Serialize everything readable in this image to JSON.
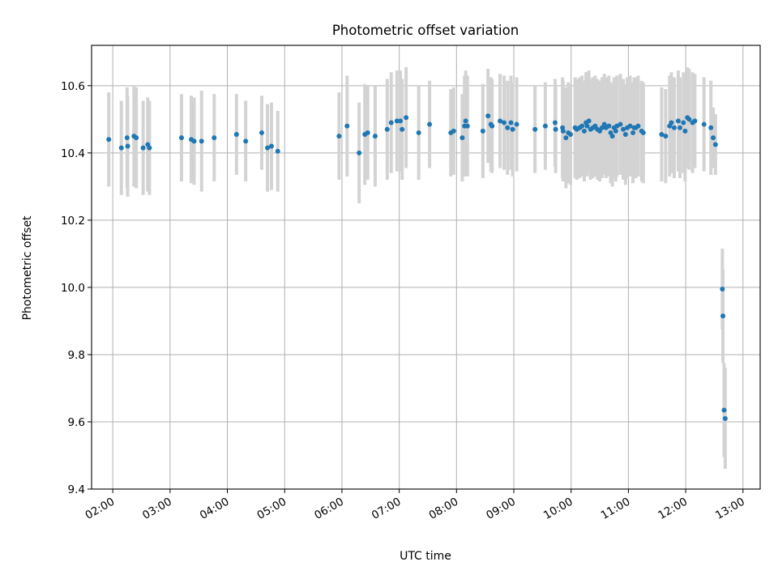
{
  "chart_data": {
    "type": "scatter",
    "title": "Photometric offset variation",
    "xlabel": "UTC time",
    "ylabel": "Photometric offset",
    "x_unit": "hours UTC",
    "xlim": [
      1.63,
      13.3
    ],
    "ylim": [
      9.4,
      10.72
    ],
    "grid": true,
    "x_tick_values": [
      2,
      3,
      4,
      5,
      6,
      7,
      8,
      9,
      10,
      11,
      12,
      13
    ],
    "x_tick_labels": [
      "02:00",
      "03:00",
      "04:00",
      "05:00",
      "06:00",
      "07:00",
      "08:00",
      "09:00",
      "10:00",
      "11:00",
      "12:00",
      "13:00"
    ],
    "y_tick_values": [
      9.4,
      9.6,
      9.8,
      10.0,
      10.2,
      10.4,
      10.6
    ],
    "y_tick_labels": [
      "9.4",
      "9.6",
      "9.8",
      "10.0",
      "10.2",
      "10.4",
      "10.6"
    ],
    "colors": {
      "marker": "#1f77b4",
      "errorbar": "#d3d3d3",
      "grid": "#b0b0b0"
    },
    "series": [
      {
        "x": [
          1.93,
          2.15,
          2.26,
          2.25,
          2.37,
          2.41,
          2.53,
          2.61,
          2.64,
          3.2,
          3.37,
          3.42,
          3.55,
          3.77,
          4.16,
          4.32,
          4.6,
          4.7,
          4.77,
          4.88,
          5.95,
          6.09,
          6.3,
          6.4,
          6.45,
          6.58,
          6.79,
          6.86,
          6.96,
          7.02,
          7.05,
          7.12,
          7.34,
          7.53,
          7.9,
          7.95,
          8.1,
          8.14,
          8.16,
          8.19,
          8.46,
          8.55,
          8.6,
          8.62,
          8.76,
          8.83,
          8.89,
          8.95,
          8.98,
          9.05,
          9.37,
          9.55,
          9.73,
          9.72,
          9.85,
          9.86,
          9.91,
          9.95,
          9.99,
          10.07,
          10.1,
          10.15,
          10.19,
          10.23,
          10.26,
          10.28,
          10.31,
          10.34,
          10.38,
          10.42,
          10.46,
          10.5,
          10.54,
          10.58,
          10.61,
          10.66,
          10.69,
          10.72,
          10.75,
          10.78,
          10.8,
          10.86,
          10.91,
          10.95,
          10.98,
          11.03,
          11.08,
          11.1,
          11.13,
          11.17,
          11.23,
          11.26,
          11.58,
          11.65,
          11.72,
          11.75,
          11.8,
          11.87,
          11.9,
          11.96,
          11.99,
          12.03,
          12.06,
          12.12,
          12.16,
          12.32,
          12.44,
          12.48,
          12.52,
          12.64,
          12.65,
          12.67,
          12.69
        ],
        "y": [
          10.44,
          10.415,
          10.42,
          10.445,
          10.45,
          10.445,
          10.415,
          10.425,
          10.415,
          10.445,
          10.44,
          10.435,
          10.435,
          10.445,
          10.455,
          10.435,
          10.46,
          10.415,
          10.42,
          10.405,
          10.45,
          10.48,
          10.4,
          10.455,
          10.46,
          10.45,
          10.47,
          10.49,
          10.495,
          10.495,
          10.47,
          10.505,
          10.46,
          10.485,
          10.46,
          10.465,
          10.445,
          10.48,
          10.495,
          10.48,
          10.465,
          10.51,
          10.485,
          10.48,
          10.495,
          10.49,
          10.475,
          10.49,
          10.47,
          10.485,
          10.47,
          10.48,
          10.47,
          10.49,
          10.475,
          10.465,
          10.445,
          10.46,
          10.455,
          10.475,
          10.47,
          10.475,
          10.48,
          10.465,
          10.49,
          10.48,
          10.495,
          10.47,
          10.475,
          10.48,
          10.47,
          10.465,
          10.475,
          10.485,
          10.475,
          10.48,
          10.46,
          10.45,
          10.475,
          10.465,
          10.48,
          10.485,
          10.47,
          10.455,
          10.475,
          10.48,
          10.46,
          10.475,
          10.475,
          10.48,
          10.465,
          10.46,
          10.455,
          10.45,
          10.48,
          10.49,
          10.475,
          10.495,
          10.475,
          10.49,
          10.465,
          10.505,
          10.5,
          10.49,
          10.495,
          10.485,
          10.475,
          10.445,
          10.425,
          9.995,
          9.915,
          9.635,
          9.61
        ],
        "yerr": [
          0.14,
          0.14,
          0.15,
          0.15,
          0.15,
          0.15,
          0.14,
          0.14,
          0.14,
          0.13,
          0.13,
          0.13,
          0.15,
          0.13,
          0.12,
          0.12,
          0.11,
          0.13,
          0.13,
          0.12,
          0.13,
          0.15,
          0.15,
          0.15,
          0.14,
          0.15,
          0.15,
          0.15,
          0.15,
          0.15,
          0.15,
          0.15,
          0.14,
          0.13,
          0.13,
          0.13,
          0.13,
          0.15,
          0.15,
          0.15,
          0.14,
          0.14,
          0.14,
          0.14,
          0.14,
          0.14,
          0.14,
          0.14,
          0.14,
          0.14,
          0.13,
          0.13,
          0.13,
          0.13,
          0.15,
          0.15,
          0.15,
          0.15,
          0.15,
          0.15,
          0.15,
          0.15,
          0.15,
          0.15,
          0.15,
          0.15,
          0.15,
          0.15,
          0.15,
          0.15,
          0.15,
          0.15,
          0.15,
          0.15,
          0.15,
          0.15,
          0.15,
          0.15,
          0.15,
          0.15,
          0.15,
          0.15,
          0.15,
          0.15,
          0.15,
          0.15,
          0.15,
          0.15,
          0.15,
          0.15,
          0.15,
          0.15,
          0.14,
          0.14,
          0.15,
          0.15,
          0.15,
          0.15,
          0.15,
          0.15,
          0.15,
          0.15,
          0.15,
          0.15,
          0.14,
          0.14,
          0.14,
          0.09,
          0.09,
          0.12,
          0.14,
          0.14,
          0.15
        ]
      }
    ]
  }
}
